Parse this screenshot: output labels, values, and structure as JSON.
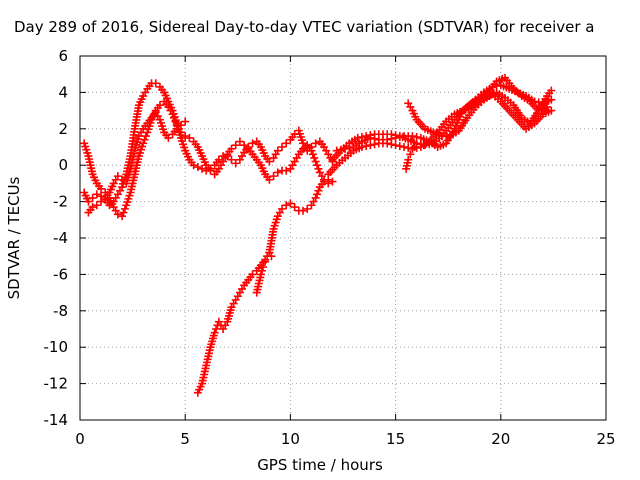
{
  "chart_data": {
    "type": "scatter",
    "title": "Day 289 of 2016, Sidereal Day-to-day VTEC variation (SDTVAR) for receiver a",
    "xlabel": "GPS time / hours",
    "ylabel": "SDTVAR / TECUs",
    "xlim": [
      0,
      25
    ],
    "ylim": [
      -14,
      6
    ],
    "xticks": [
      0,
      5,
      10,
      15,
      20,
      25
    ],
    "yticks": [
      6,
      4,
      2,
      0,
      -2,
      -4,
      -6,
      -8,
      -10,
      -12,
      -14
    ],
    "grid": true,
    "marker": "plus",
    "color": "#ff0000",
    "series": [
      {
        "x": [
          0.2,
          0.4,
          0.6,
          0.8,
          1.0,
          1.2,
          1.4,
          1.6,
          1.8,
          2.0,
          2.2,
          2.4,
          2.6,
          2.8,
          3.0,
          3.2,
          3.4,
          3.6,
          3.8,
          4.0,
          4.2,
          4.4,
          4.6,
          4.8,
          5.0,
          5.2,
          5.4,
          5.6,
          5.8,
          6.0,
          6.2,
          6.4,
          6.6,
          6.8,
          7.0,
          7.2,
          7.4,
          7.6,
          7.8,
          8.0,
          8.2,
          8.4,
          8.6,
          8.8,
          9.0,
          9.2,
          9.4,
          9.6,
          9.8,
          10.0,
          10.2,
          10.4,
          10.6,
          10.8,
          11.0,
          11.2,
          11.4,
          11.6,
          11.8,
          12.0
        ],
        "y": [
          -1.5,
          -2.0,
          -1.8,
          -1.6,
          -1.7,
          -1.9,
          -2.2,
          -2.0,
          -1.6,
          -1.2,
          -0.5,
          0.5,
          2.0,
          3.3,
          3.8,
          4.2,
          4.5,
          4.5,
          4.3,
          4.0,
          3.5,
          3.0,
          2.3,
          1.5,
          0.8,
          0.3,
          0.0,
          -0.1,
          -0.2,
          -0.3,
          -0.2,
          0.0,
          0.3,
          0.5,
          0.5,
          0.3,
          0.1,
          0.3,
          0.7,
          1.0,
          1.2,
          1.3,
          1.0,
          0.5,
          0.2,
          0.4,
          0.8,
          1.0,
          1.2,
          1.4,
          1.7,
          1.9,
          1.2,
          0.8,
          1.0,
          1.2,
          1.3,
          1.0,
          0.6,
          0.2
        ]
      },
      {
        "x": [
          0.2,
          0.4,
          0.6,
          0.8,
          1.0,
          1.2,
          1.4,
          1.6,
          1.8,
          2.0,
          2.2,
          2.4,
          2.6,
          2.8,
          3.0,
          3.2,
          3.4,
          3.6,
          3.8,
          4.0,
          4.2,
          4.4,
          4.6,
          4.8,
          5.0,
          5.2,
          5.4,
          5.6,
          5.8,
          6.0,
          6.2,
          6.4,
          6.6,
          6.8,
          7.0,
          7.2,
          7.4,
          7.6,
          7.8,
          8.0,
          8.2,
          8.4,
          8.6,
          8.8,
          9.0,
          9.2,
          9.4,
          9.6,
          9.8,
          10.0,
          10.2,
          10.4,
          10.6,
          10.8,
          11.0,
          11.2,
          11.4,
          11.6,
          11.8,
          12.0
        ],
        "y": [
          1.2,
          0.5,
          -0.5,
          -1.0,
          -1.3,
          -1.5,
          -1.8,
          -2.3,
          -2.7,
          -2.8,
          -2.2,
          -1.5,
          -0.5,
          0.5,
          1.2,
          1.8,
          2.5,
          3.0,
          3.3,
          3.5,
          3.2,
          2.8,
          2.2,
          1.8,
          1.6,
          1.5,
          1.3,
          1.0,
          0.5,
          0.0,
          -0.3,
          -0.5,
          -0.2,
          0.2,
          0.6,
          0.9,
          1.1,
          1.3,
          1.1,
          0.9,
          0.6,
          0.3,
          0.0,
          -0.5,
          -0.8,
          -0.6,
          -0.4,
          -0.3,
          -0.3,
          -0.2,
          0.2,
          0.6,
          0.9,
          1.1,
          0.8,
          0.2,
          -0.4,
          -0.8,
          -1.0,
          -0.9
        ]
      },
      {
        "x": [
          0.4,
          0.6,
          0.8,
          1.0,
          1.2,
          1.4,
          1.6,
          1.8,
          2.0,
          2.2,
          2.4,
          2.6,
          2.8,
          3.0,
          3.2,
          3.4,
          3.6,
          3.8,
          4.0,
          4.2,
          4.4,
          4.6,
          4.8,
          5.0
        ],
        "y": [
          -2.6,
          -2.3,
          -2.2,
          -2.0,
          -1.8,
          -1.5,
          -1.0,
          -0.6,
          -0.8,
          -1.0,
          -0.2,
          0.8,
          1.6,
          2.0,
          2.3,
          2.6,
          2.9,
          2.5,
          1.8,
          1.5,
          1.7,
          2.0,
          2.2,
          2.4
        ]
      },
      {
        "x": [
          5.6,
          5.8,
          6.0,
          6.2,
          6.4,
          6.6,
          6.8,
          7.0,
          7.2,
          7.4,
          7.6,
          7.8,
          8.0,
          8.2,
          8.4,
          8.6,
          8.8,
          9.0,
          9.2,
          9.4,
          9.6,
          9.8,
          10.0,
          10.2,
          10.4,
          10.6,
          10.8,
          11.0,
          11.2,
          11.4,
          11.6,
          11.8
        ],
        "y": [
          -12.5,
          -12.0,
          -11.0,
          -10.0,
          -9.2,
          -8.6,
          -9.0,
          -8.6,
          -7.8,
          -7.4,
          -7.0,
          -6.6,
          -6.3,
          -6.0,
          -5.8,
          -5.5,
          -5.2,
          -4.8,
          -3.5,
          -2.8,
          -2.4,
          -2.2,
          -2.1,
          -2.3,
          -2.5,
          -2.5,
          -2.4,
          -2.2,
          -1.8,
          -1.2,
          -0.9,
          -0.8
        ]
      },
      {
        "x": [
          8.4,
          8.5,
          8.6,
          8.7,
          8.8,
          8.9,
          9.0,
          9.1
        ],
        "y": [
          -7.0,
          -6.5,
          -6.0,
          -5.6,
          -5.3,
          -5.0,
          -4.8,
          -5.0
        ]
      },
      {
        "x": [
          12.0,
          12.4,
          12.8,
          13.2,
          13.6,
          14.0,
          14.4,
          14.8,
          15.2,
          15.6,
          16.0,
          16.4,
          16.8,
          17.2,
          17.6,
          18.0,
          18.4,
          18.8,
          19.2,
          19.6,
          20.0,
          20.4,
          20.8,
          21.2,
          21.6,
          22.0,
          22.4
        ],
        "y": [
          0.3,
          0.8,
          1.2,
          1.5,
          1.6,
          1.7,
          1.7,
          1.7,
          1.6,
          1.4,
          1.2,
          1.1,
          1.2,
          1.6,
          2.2,
          2.8,
          3.2,
          3.6,
          4.0,
          4.3,
          4.4,
          4.2,
          4.0,
          3.8,
          3.5,
          3.4,
          3.6
        ]
      },
      {
        "x": [
          11.8,
          12.2,
          12.6,
          13.0,
          13.4,
          13.8,
          14.2,
          14.6,
          15.0,
          15.4,
          15.8,
          16.2,
          16.6,
          17.0,
          17.4,
          17.8,
          18.2,
          18.6,
          19.0,
          19.4,
          19.8,
          20.2,
          20.6,
          21.0,
          21.4,
          21.8,
          22.2
        ],
        "y": [
          -0.5,
          0.0,
          0.4,
          0.8,
          1.0,
          1.1,
          1.2,
          1.2,
          1.1,
          1.0,
          0.9,
          1.0,
          1.3,
          1.8,
          2.4,
          2.8,
          3.0,
          3.2,
          3.6,
          4.0,
          4.6,
          4.8,
          4.2,
          3.8,
          3.5,
          3.0,
          3.2
        ]
      },
      {
        "x": [
          12.2,
          12.6,
          13.0,
          13.4,
          13.8,
          14.2,
          14.6,
          15.0,
          15.4,
          15.8,
          16.2,
          16.6,
          17.0,
          17.4,
          17.8,
          18.2,
          18.6,
          19.0,
          19.4,
          19.8,
          20.2,
          20.6,
          21.0,
          21.4,
          21.8,
          22.2,
          22.4
        ],
        "y": [
          0.8,
          0.9,
          1.0,
          1.3,
          1.5,
          1.4,
          1.4,
          1.5,
          1.6,
          1.6,
          1.5,
          1.3,
          1.0,
          1.2,
          2.0,
          3.0,
          3.4,
          3.6,
          3.8,
          4.0,
          3.7,
          3.3,
          2.6,
          2.3,
          3.0,
          3.8,
          4.1
        ]
      },
      {
        "x": [
          15.6,
          15.8,
          16.0,
          16.4,
          16.8,
          17.2,
          17.6,
          18.0,
          18.4,
          18.8,
          19.2,
          19.6,
          20.0,
          20.4,
          20.8,
          21.2,
          21.6,
          22.0,
          22.4
        ],
        "y": [
          3.4,
          3.0,
          2.5,
          2.0,
          1.8,
          1.6,
          1.6,
          1.9,
          2.6,
          3.2,
          3.6,
          3.9,
          3.5,
          3.0,
          2.5,
          2.0,
          2.3,
          2.8,
          3.0
        ]
      },
      {
        "x": [
          15.5,
          15.6,
          15.7,
          15.8,
          15.9,
          16.0
        ],
        "y": [
          -0.2,
          0.3,
          0.6,
          0.9,
          1.0,
          1.2
        ]
      }
    ]
  }
}
